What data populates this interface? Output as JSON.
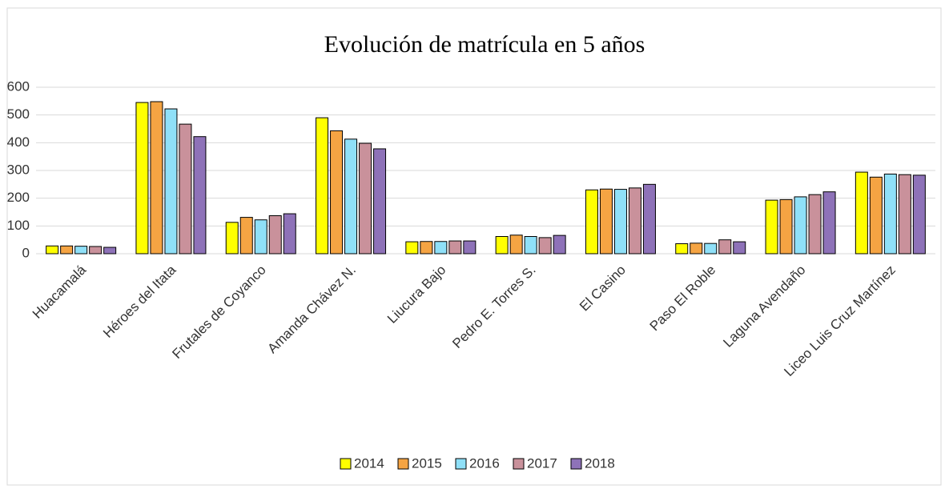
{
  "chart_data": {
    "type": "bar",
    "title": "Evolución de matrícula en 5 años",
    "categories": [
      "Huacamalá",
      "Héroes del Itata",
      "Frutales de Coyanco",
      "Amanda Chávez N.",
      "Liucura Bajo",
      "Pedro E. Torres S.",
      "El Casino",
      "Paso El Roble",
      "Laguna Avendaño",
      "Liceo Luis Cruz Martínez"
    ],
    "series": [
      {
        "name": "2014",
        "color": "#ffff00",
        "values": [
          28,
          545,
          113,
          490,
          43,
          62,
          230,
          36,
          193,
          294
        ]
      },
      {
        "name": "2015",
        "color": "#f5a443",
        "values": [
          28,
          548,
          131,
          443,
          44,
          67,
          233,
          38,
          195,
          276
        ]
      },
      {
        "name": "2016",
        "color": "#8fe0f8",
        "values": [
          27,
          522,
          122,
          413,
          44,
          62,
          232,
          37,
          205,
          287
        ]
      },
      {
        "name": "2017",
        "color": "#c9919b",
        "values": [
          26,
          467,
          137,
          398,
          46,
          58,
          237,
          50,
          213,
          285
        ]
      },
      {
        "name": "2018",
        "color": "#8e72b8",
        "values": [
          23,
          422,
          144,
          378,
          46,
          66,
          250,
          43,
          223,
          283
        ]
      }
    ],
    "ylim": [
      0,
      600
    ],
    "yticks": [
      0,
      100,
      200,
      300,
      400,
      500,
      600
    ],
    "grid": true,
    "legend": "bottom"
  }
}
